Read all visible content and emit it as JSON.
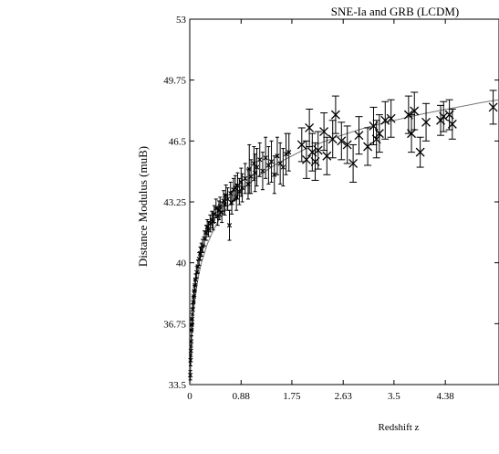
{
  "chart_data": {
    "type": "scatter",
    "title": "SNE-Ia and GRB (LCDM)",
    "xlabel": "Redshift z",
    "ylabel": "Distance Modulus (mu B)",
    "ylabel_text": "Distance Modulus (muB)",
    "xlim": [
      0,
      5.3
    ],
    "ylim": [
      33.5,
      53
    ],
    "x_ticks": [
      0,
      0.88,
      1.75,
      2.63,
      3.5,
      4.38
    ],
    "x_tick_labels": [
      "0",
      "0.88",
      "1.75",
      "2.63",
      "3.5",
      "4.38"
    ],
    "y_ticks": [
      33.5,
      36.75,
      40,
      43.25,
      46.5,
      49.75,
      53
    ],
    "y_tick_labels": [
      "33.5",
      "36.75",
      "40",
      "43.25",
      "46.5",
      "49.75",
      "53"
    ],
    "grid": false,
    "legend": "none",
    "marker_color": "#000000",
    "fit_line_color": "#777777",
    "model_curve": {
      "name": "LCDM",
      "x": [
        0.01,
        0.02,
        0.04,
        0.07,
        0.1,
        0.15,
        0.2,
        0.3,
        0.4,
        0.5,
        0.7,
        0.9,
        1.2,
        1.5,
        2.0,
        2.5,
        3.0,
        3.5,
        4.0,
        4.5,
        5.0,
        5.3
      ],
      "y": [
        33.2,
        34.75,
        36.3,
        37.55,
        38.35,
        39.3,
        40.0,
        41.0,
        41.7,
        42.3,
        43.2,
        43.9,
        44.7,
        45.3,
        46.1,
        46.7,
        47.2,
        47.6,
        47.95,
        48.25,
        48.55,
        48.7
      ]
    },
    "series": [
      {
        "marker": "x",
        "x": [
          0.01,
          0.015,
          0.02,
          0.025,
          0.03,
          0.035,
          0.04,
          0.05,
          0.06,
          0.07,
          0.08,
          0.09,
          0.1,
          0.12,
          0.14,
          0.16,
          0.18,
          0.2,
          0.22,
          0.25,
          0.28,
          0.3,
          0.32,
          0.35,
          0.38,
          0.4,
          0.42,
          0.45,
          0.48,
          0.5,
          0.52,
          0.55,
          0.58,
          0.6,
          0.62,
          0.65,
          0.68,
          0.7,
          0.72,
          0.75,
          0.78,
          0.8,
          0.82,
          0.85,
          0.88,
          0.9,
          0.95,
          1.0,
          1.02,
          1.05,
          1.1,
          1.12,
          1.15,
          1.2,
          1.25,
          1.3,
          1.35,
          1.4,
          1.45,
          1.5,
          1.55,
          1.6,
          1.65,
          1.7
        ],
        "y": [
          34.0,
          34.8,
          35.3,
          35.8,
          36.4,
          36.7,
          37.0,
          37.5,
          37.9,
          38.2,
          38.5,
          38.8,
          39.1,
          39.5,
          39.8,
          40.2,
          40.5,
          40.7,
          40.9,
          41.3,
          41.6,
          41.9,
          41.8,
          42.1,
          42.3,
          42.2,
          42.6,
          42.9,
          42.5,
          42.8,
          43.0,
          42.7,
          43.3,
          43.1,
          43.6,
          43.4,
          42.0,
          43.7,
          43.2,
          43.9,
          44.0,
          43.5,
          44.1,
          43.8,
          44.3,
          44.0,
          44.5,
          44.2,
          45.0,
          44.6,
          45.3,
          44.8,
          45.1,
          45.5,
          44.9,
          45.6,
          45.2,
          45.4,
          44.7,
          45.7,
          45.3,
          45.1,
          45.8,
          45.9
        ],
        "y_err": [
          0.25,
          0.3,
          0.3,
          0.3,
          0.3,
          0.3,
          0.3,
          0.3,
          0.3,
          0.3,
          0.3,
          0.3,
          0.3,
          0.3,
          0.35,
          0.35,
          0.35,
          0.35,
          0.35,
          0.4,
          0.4,
          0.4,
          0.4,
          0.45,
          0.45,
          0.45,
          0.45,
          0.5,
          0.5,
          0.5,
          0.5,
          0.55,
          0.55,
          0.55,
          0.55,
          0.6,
          0.8,
          0.6,
          0.6,
          0.6,
          0.65,
          0.7,
          0.7,
          0.7,
          0.75,
          0.75,
          0.8,
          0.8,
          1.3,
          0.9,
          0.9,
          1.0,
          1.0,
          0.9,
          1.0,
          1.1,
          1.0,
          1.1,
          1.0,
          1.0,
          1.1,
          1.0,
          1.1,
          1.0
        ]
      },
      {
        "marker": "x",
        "x": [
          1.92,
          2.0,
          2.05,
          2.1,
          2.15,
          2.2,
          2.3,
          2.35,
          2.45,
          2.5,
          2.6,
          2.7,
          2.8,
          2.9,
          3.05,
          3.15,
          3.2,
          3.25,
          3.35,
          3.45,
          3.75,
          3.8,
          3.85,
          3.95,
          4.05,
          4.3,
          4.35,
          4.45,
          4.5,
          5.2
        ],
        "y": [
          46.3,
          45.5,
          47.2,
          45.9,
          45.4,
          46.0,
          47.0,
          45.7,
          46.6,
          47.9,
          46.5,
          46.3,
          45.3,
          46.8,
          46.2,
          47.3,
          46.6,
          46.9,
          47.6,
          47.7,
          47.9,
          46.9,
          48.1,
          45.9,
          47.5,
          47.6,
          47.8,
          47.9,
          47.4,
          48.3
        ],
        "y_err": [
          0.9,
          1.0,
          1.0,
          1.0,
          1.0,
          1.0,
          1.0,
          1.0,
          1.0,
          1.0,
          1.0,
          1.0,
          1.0,
          1.0,
          1.0,
          1.0,
          1.0,
          1.0,
          1.0,
          1.0,
          1.0,
          1.0,
          1.0,
          0.8,
          1.0,
          0.8,
          0.8,
          0.8,
          0.8,
          0.9
        ]
      }
    ]
  }
}
